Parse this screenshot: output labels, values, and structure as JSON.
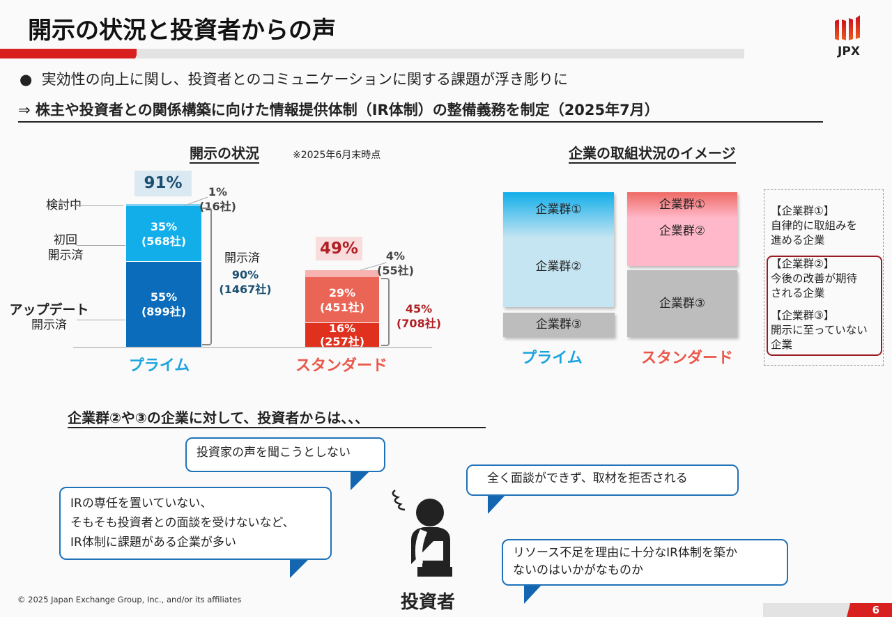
{
  "header": {
    "title": "開示の状況と投資者からの声",
    "logo_text": "JPX"
  },
  "bullets": {
    "line1": "実効性の向上に関し、投資者とのコミュニケーションに関する課題が浮き彫りに",
    "line2_arrow": "⇒",
    "line2": "株主や投資者との関係構築に向けた情報提供体制（IR体制）の整備義務を制定（2025年7月）"
  },
  "left_chart": {
    "heading": "開示の状況",
    "note": "※2025年6月末時点",
    "row_labels": {
      "considering": "検討中",
      "first_1": "初回",
      "first_2": "開示済",
      "update_1": "アップデート",
      "update_2": "開示済"
    },
    "prime": {
      "name": "プライム",
      "total": "91%",
      "considering_pct": "1%",
      "considering_cnt": "(16社)",
      "first_pct": "35%",
      "first_cnt": "(568社)",
      "update_pct": "55%",
      "update_cnt": "(899社)",
      "disclosed_label": "開示済",
      "disclosed_pct": "90%",
      "disclosed_cnt": "(1467社)"
    },
    "standard": {
      "name": "スタンダード",
      "total": "49%",
      "considering_pct": "4%",
      "considering_cnt": "(55社)",
      "first_pct": "29%",
      "first_cnt": "(451社)",
      "update_pct": "16%",
      "update_cnt": "(257社)",
      "disclosed_pct": "45%",
      "disclosed_cnt": "(708社)"
    }
  },
  "right_diagram": {
    "heading": "企業の取組状況のイメージ",
    "g1": "企業群①",
    "g2": "企業群②",
    "g3": "企業群③",
    "prime": "プライム",
    "standard": "スタンダード",
    "legend": [
      {
        "title": "【企業群①】",
        "desc1": "自律的に取組みを",
        "desc2": "進める企業"
      },
      {
        "title": "【企業群②】",
        "desc1": "今後の改善が期待",
        "desc2": "される企業"
      },
      {
        "title": "【企業群③】",
        "desc1": "開示に至っていない",
        "desc2": "企業"
      }
    ]
  },
  "voices": {
    "heading": "企業群②や③の企業に対して、投資者からは、、、",
    "b1": "投資家の声を聞こうとしない",
    "b2": [
      "IRの専任を置いていない、",
      "そもそも投資者との面談を受けないなど、",
      "IR体制に課題がある企業が多い"
    ],
    "b3": "全く面談ができず、取材を拒否される",
    "b4": [
      "リソース不足を理由に十分なIR体制を築か",
      "ないのはいかがなものか"
    ],
    "investor": "投資者"
  },
  "footer": {
    "copyright": "© 2025 Japan Exchange Group, Inc., and/or its affiliates",
    "page": "6"
  }
}
